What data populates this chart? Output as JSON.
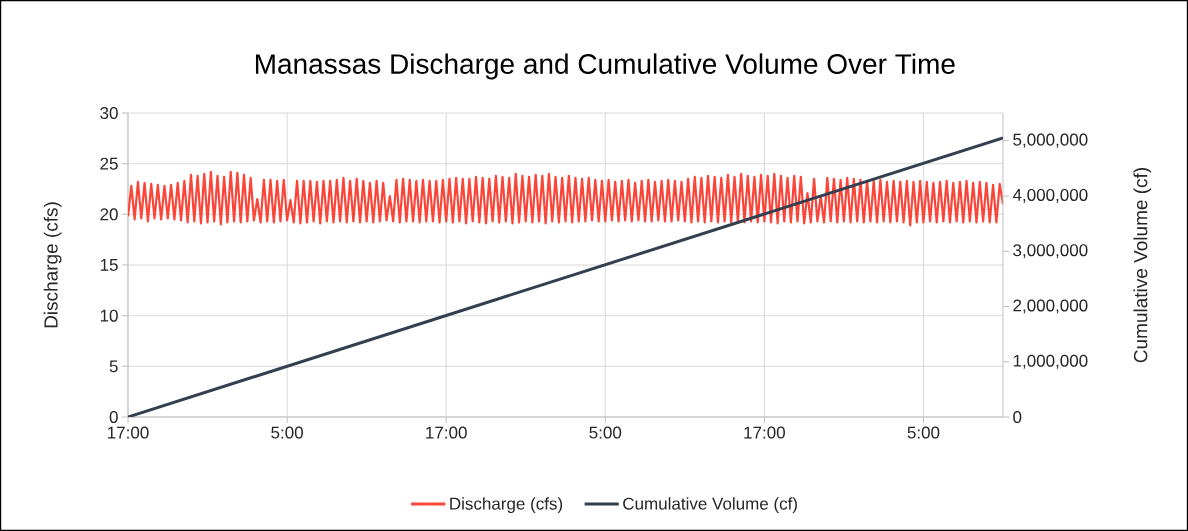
{
  "chart_data": {
    "type": "line",
    "title": "Manassas Discharge and Cumulative Volume Over Time",
    "ylabel": "Discharge (cfs)",
    "y2label": "Cumulative Volume (cf)",
    "xlim": [
      "2000-01-01T17:00",
      "2000-01-04T11:00"
    ],
    "xticks": [
      {
        "value": "2000-01-01T17:00",
        "label": "17:00"
      },
      {
        "value": "2000-01-02T05:00",
        "label": "5:00"
      },
      {
        "value": "2000-01-02T17:00",
        "label": "17:00"
      },
      {
        "value": "2000-01-03T05:00",
        "label": "5:00"
      },
      {
        "value": "2000-01-03T17:00",
        "label": "17:00"
      },
      {
        "value": "2000-01-04T05:00",
        "label": "5:00"
      }
    ],
    "ylim": [
      0,
      30
    ],
    "yticks": [
      0,
      5,
      10,
      15,
      20,
      25,
      30
    ],
    "y2lim": [
      0,
      5500000
    ],
    "y2ticks": [
      0,
      {
        "value": 1000000,
        "label": "1,000,000"
      },
      {
        "value": 2000000,
        "label": "2,000,000"
      },
      {
        "value": 3000000,
        "label": "3,000,000"
      },
      {
        "value": 4000000,
        "label": "4,000,000"
      },
      {
        "value": 5000000,
        "label": "5,000,000"
      }
    ],
    "grid": true,
    "legend": "bottom",
    "series": [
      {
        "name": "Discharge (cfs)",
        "color": "#fb4539",
        "x": [
          "2000-01-01T17:00",
          "2000-01-01T17:15",
          "2000-01-01T17:30",
          "2000-01-01T17:45",
          "2000-01-01T18:00",
          "2000-01-01T18:15",
          "2000-01-01T18:30",
          "2000-01-01T18:45",
          "2000-01-01T19:00",
          "2000-01-01T19:15",
          "2000-01-01T19:30",
          "2000-01-01T19:45",
          "2000-01-01T20:00",
          "2000-01-01T20:15",
          "2000-01-01T20:30",
          "2000-01-01T20:45",
          "2000-01-01T21:00",
          "2000-01-01T21:15",
          "2000-01-01T21:30",
          "2000-01-01T21:45",
          "2000-01-01T22:00",
          "2000-01-01T22:15",
          "2000-01-01T22:30",
          "2000-01-01T22:45",
          "2000-01-01T23:00",
          "2000-01-01T23:15",
          "2000-01-01T23:30",
          "2000-01-01T23:45",
          "2000-01-02T00:00",
          "2000-01-02T00:15",
          "2000-01-02T00:30",
          "2000-01-02T00:45",
          "2000-01-02T01:00",
          "2000-01-02T01:15",
          "2000-01-02T01:30",
          "2000-01-02T01:45",
          "2000-01-02T02:00",
          "2000-01-02T02:15",
          "2000-01-02T02:30",
          "2000-01-02T02:45",
          "2000-01-02T03:00",
          "2000-01-02T03:15",
          "2000-01-02T03:30",
          "2000-01-02T03:45",
          "2000-01-02T04:00",
          "2000-01-02T04:15",
          "2000-01-02T04:30",
          "2000-01-02T04:45",
          "2000-01-02T05:00",
          "2000-01-02T05:15",
          "2000-01-02T05:30",
          "2000-01-02T05:45",
          "2000-01-02T06:00",
          "2000-01-02T06:15",
          "2000-01-02T06:30",
          "2000-01-02T06:45",
          "2000-01-02T07:00",
          "2000-01-02T07:15",
          "2000-01-02T07:30",
          "2000-01-02T07:45",
          "2000-01-02T08:00",
          "2000-01-02T08:15",
          "2000-01-02T08:30",
          "2000-01-02T08:45",
          "2000-01-02T09:00",
          "2000-01-02T09:15",
          "2000-01-02T09:30",
          "2000-01-02T09:45",
          "2000-01-02T10:00",
          "2000-01-02T10:15",
          "2000-01-02T10:30",
          "2000-01-02T10:45",
          "2000-01-02T11:00",
          "2000-01-02T11:15",
          "2000-01-02T11:30",
          "2000-01-02T11:45",
          "2000-01-02T12:00",
          "2000-01-02T12:15",
          "2000-01-02T12:30",
          "2000-01-02T12:45",
          "2000-01-02T13:00",
          "2000-01-02T13:15",
          "2000-01-02T13:30",
          "2000-01-02T13:45",
          "2000-01-02T14:00",
          "2000-01-02T14:15",
          "2000-01-02T14:30",
          "2000-01-02T14:45",
          "2000-01-02T15:00",
          "2000-01-02T15:15",
          "2000-01-02T15:30",
          "2000-01-02T15:45",
          "2000-01-02T16:00",
          "2000-01-02T16:15",
          "2000-01-02T16:30",
          "2000-01-02T16:45",
          "2000-01-02T17:00",
          "2000-01-02T17:15",
          "2000-01-02T17:30",
          "2000-01-02T17:45",
          "2000-01-02T18:00",
          "2000-01-02T18:15",
          "2000-01-02T18:30",
          "2000-01-02T18:45",
          "2000-01-02T19:00",
          "2000-01-02T19:15",
          "2000-01-02T19:30",
          "2000-01-02T19:45",
          "2000-01-02T20:00",
          "2000-01-02T20:15",
          "2000-01-02T20:30",
          "2000-01-02T20:45",
          "2000-01-02T21:00",
          "2000-01-02T21:15",
          "2000-01-02T21:30",
          "2000-01-02T21:45",
          "2000-01-02T22:00",
          "2000-01-02T22:15",
          "2000-01-02T22:30",
          "2000-01-02T22:45",
          "2000-01-02T23:00",
          "2000-01-02T23:15",
          "2000-01-02T23:30",
          "2000-01-02T23:45",
          "2000-01-03T00:00",
          "2000-01-03T00:15",
          "2000-01-03T00:30",
          "2000-01-03T00:45",
          "2000-01-03T01:00",
          "2000-01-03T01:15",
          "2000-01-03T01:30",
          "2000-01-03T01:45",
          "2000-01-03T02:00",
          "2000-01-03T02:15",
          "2000-01-03T02:30",
          "2000-01-03T02:45",
          "2000-01-03T03:00",
          "2000-01-03T03:15",
          "2000-01-03T03:30",
          "2000-01-03T03:45",
          "2000-01-03T04:00",
          "2000-01-03T04:15",
          "2000-01-03T04:30",
          "2000-01-03T04:45",
          "2000-01-03T05:00",
          "2000-01-03T05:15",
          "2000-01-03T05:30",
          "2000-01-03T05:45",
          "2000-01-03T06:00",
          "2000-01-03T06:15",
          "2000-01-03T06:30",
          "2000-01-03T06:45",
          "2000-01-03T07:00",
          "2000-01-03T07:15",
          "2000-01-03T07:30",
          "2000-01-03T07:45",
          "2000-01-03T08:00",
          "2000-01-03T08:15",
          "2000-01-03T08:30",
          "2000-01-03T08:45",
          "2000-01-03T09:00",
          "2000-01-03T09:15",
          "2000-01-03T09:30",
          "2000-01-03T09:45",
          "2000-01-03T10:00",
          "2000-01-03T10:15",
          "2000-01-03T10:30",
          "2000-01-03T10:45",
          "2000-01-03T11:00",
          "2000-01-03T11:15",
          "2000-01-03T11:30",
          "2000-01-03T11:45",
          "2000-01-03T12:00",
          "2000-01-03T12:15",
          "2000-01-03T12:30",
          "2000-01-03T12:45",
          "2000-01-03T13:00",
          "2000-01-03T13:15",
          "2000-01-03T13:30",
          "2000-01-03T13:45",
          "2000-01-03T14:00",
          "2000-01-03T14:15",
          "2000-01-03T14:30",
          "2000-01-03T14:45",
          "2000-01-03T15:00",
          "2000-01-03T15:15",
          "2000-01-03T15:30",
          "2000-01-03T15:45",
          "2000-01-03T16:00",
          "2000-01-03T16:15",
          "2000-01-03T16:30",
          "2000-01-03T16:45",
          "2000-01-03T17:00",
          "2000-01-03T17:15",
          "2000-01-03T17:30",
          "2000-01-03T17:45",
          "2000-01-03T18:00",
          "2000-01-03T18:15",
          "2000-01-03T18:30",
          "2000-01-03T18:45",
          "2000-01-03T19:00",
          "2000-01-03T19:15",
          "2000-01-03T19:30",
          "2000-01-03T19:45",
          "2000-01-03T20:00",
          "2000-01-03T20:15",
          "2000-01-03T20:30",
          "2000-01-03T20:45",
          "2000-01-03T21:00",
          "2000-01-03T21:15",
          "2000-01-03T21:30",
          "2000-01-03T21:45",
          "2000-01-03T22:00",
          "2000-01-03T22:15",
          "2000-01-03T22:30",
          "2000-01-03T22:45",
          "2000-01-03T23:00",
          "2000-01-03T23:15",
          "2000-01-03T23:30",
          "2000-01-03T23:45",
          "2000-01-04T00:00",
          "2000-01-04T00:15",
          "2000-01-04T00:30",
          "2000-01-04T00:45",
          "2000-01-04T01:00",
          "2000-01-04T01:15",
          "2000-01-04T01:30",
          "2000-01-04T01:45",
          "2000-01-04T02:00",
          "2000-01-04T02:15",
          "2000-01-04T02:30",
          "2000-01-04T02:45",
          "2000-01-04T03:00",
          "2000-01-04T03:15",
          "2000-01-04T03:30",
          "2000-01-04T03:45",
          "2000-01-04T04:00",
          "2000-01-04T04:15",
          "2000-01-04T04:30",
          "2000-01-04T04:45",
          "2000-01-04T05:00",
          "2000-01-04T05:15",
          "2000-01-04T05:30",
          "2000-01-04T05:45",
          "2000-01-04T06:00",
          "2000-01-04T06:15",
          "2000-01-04T06:30",
          "2000-01-04T06:45",
          "2000-01-04T07:00",
          "2000-01-04T07:15",
          "2000-01-04T07:30",
          "2000-01-04T07:45",
          "2000-01-04T08:00",
          "2000-01-04T08:15",
          "2000-01-04T08:30",
          "2000-01-04T08:45",
          "2000-01-04T09:00",
          "2000-01-04T09:15",
          "2000-01-04T09:30",
          "2000-01-04T09:45",
          "2000-01-04T10:00",
          "2000-01-04T10:15",
          "2000-01-04T10:30",
          "2000-01-04T10:45",
          "2000-01-04T11:00"
        ],
        "values": [
          19.8,
          22.8,
          19.5,
          23.2,
          19.6,
          23.1,
          19.3,
          23.0,
          19.6,
          22.9,
          19.5,
          22.8,
          19.6,
          22.9,
          19.5,
          23.1,
          19.4,
          23.3,
          19.2,
          23.9,
          19.3,
          23.8,
          19.1,
          24.0,
          19.2,
          24.2,
          19.3,
          23.8,
          19.0,
          23.7,
          19.2,
          24.2,
          19.3,
          24.1,
          19.2,
          23.9,
          19.3,
          23.6,
          19.4,
          21.5,
          19.2,
          23.4,
          19.3,
          23.4,
          19.2,
          23.3,
          19.3,
          23.4,
          19.4,
          21.4,
          19.2,
          23.3,
          19.1,
          23.3,
          19.2,
          23.3,
          19.3,
          23.2,
          19.1,
          23.3,
          19.3,
          23.3,
          19.2,
          23.4,
          19.3,
          23.6,
          19.2,
          23.3,
          19.3,
          23.5,
          19.2,
          23.3,
          19.3,
          23.1,
          19.2,
          23.3,
          19.3,
          23.1,
          19.4,
          21.8,
          19.3,
          23.4,
          19.2,
          23.5,
          19.3,
          23.4,
          19.3,
          23.3,
          19.2,
          23.4,
          19.3,
          23.3,
          19.3,
          23.3,
          19.2,
          23.4,
          19.3,
          23.5,
          19.2,
          23.6,
          19.3,
          23.5,
          19.1,
          23.5,
          19.3,
          23.7,
          19.2,
          23.6,
          19.1,
          23.5,
          19.3,
          23.8,
          19.2,
          23.7,
          19.3,
          23.6,
          19.1,
          24.0,
          19.2,
          23.8,
          19.3,
          23.7,
          19.2,
          23.9,
          19.3,
          23.8,
          19.1,
          24.0,
          19.3,
          23.7,
          19.2,
          23.6,
          19.3,
          23.8,
          19.2,
          23.6,
          19.3,
          23.5,
          19.3,
          23.6,
          19.4,
          23.4,
          19.3,
          23.3,
          19.3,
          23.4,
          19.4,
          23.2,
          19.3,
          23.3,
          19.4,
          23.4,
          19.3,
          23.1,
          19.4,
          23.3,
          19.3,
          23.4,
          19.3,
          23.2,
          19.4,
          23.3,
          19.3,
          23.4,
          19.3,
          23.3,
          19.4,
          23.2,
          19.3,
          23.5,
          19.2,
          23.7,
          19.3,
          23.6,
          19.2,
          23.8,
          19.3,
          23.7,
          19.2,
          23.6,
          19.3,
          23.9,
          19.2,
          23.7,
          19.3,
          24.0,
          19.2,
          23.8,
          19.3,
          23.7,
          19.2,
          23.9,
          19.3,
          23.8,
          19.2,
          24.0,
          19.1,
          23.8,
          19.3,
          23.6,
          19.2,
          23.8,
          19.3,
          23.7,
          19.1,
          22.1,
          19.2,
          23.5,
          19.3,
          21.8,
          19.2,
          23.6,
          19.3,
          23.5,
          19.2,
          23.4,
          19.3,
          23.6,
          19.2,
          23.5,
          19.3,
          23.4,
          19.2,
          23.3,
          19.3,
          23.3,
          19.2,
          23.4,
          19.3,
          23.2,
          19.2,
          23.3,
          19.3,
          23.2,
          19.2,
          23.3,
          18.9,
          23.2,
          19.2,
          23.3,
          19.2,
          23.2,
          19.3,
          23.1,
          19.2,
          23.2,
          19.3,
          23.3,
          19.2,
          23.1,
          19.3,
          23.2,
          19.2,
          23.3,
          19.3,
          23.1,
          19.2,
          23.2,
          19.3,
          23.1,
          19.2,
          22.9,
          19.2,
          23.0,
          21.0
        ]
      },
      {
        "name": "Cumulative Volume (cf)",
        "color": "#333f4f",
        "axis": "y2",
        "x": [
          "2000-01-01T17:00",
          "2000-01-04T11:00"
        ],
        "values": [
          0,
          5050000
        ]
      }
    ]
  }
}
